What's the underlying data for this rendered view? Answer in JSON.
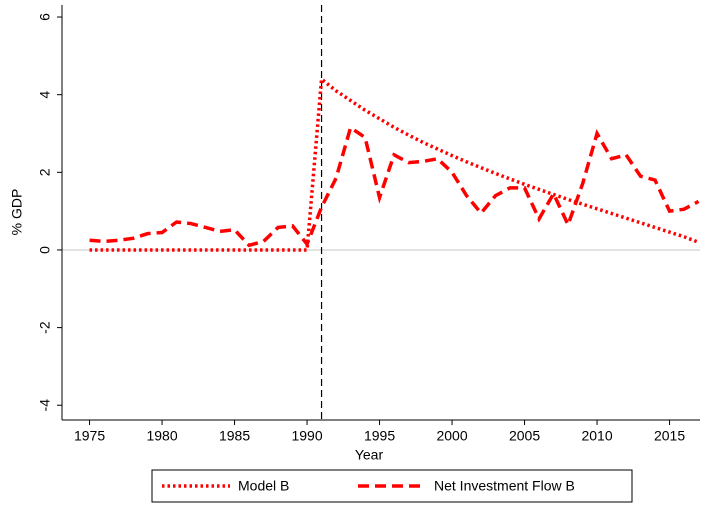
{
  "chart_data": {
    "type": "line",
    "x_label": "Year",
    "y_label": "% GDP",
    "x": [
      1975,
      1976,
      1977,
      1978,
      1979,
      1980,
      1981,
      1982,
      1983,
      1984,
      1985,
      1986,
      1987,
      1988,
      1989,
      1990,
      1991,
      1992,
      1993,
      1994,
      1995,
      1996,
      1997,
      1998,
      1999,
      2000,
      2001,
      2002,
      2003,
      2004,
      2005,
      2006,
      2007,
      2008,
      2009,
      2010,
      2011,
      2012,
      2013,
      2014,
      2015,
      2016,
      2017
    ],
    "series": [
      {
        "name": "Model B",
        "color": "#ff0000",
        "style": "dotted",
        "values": [
          0,
          0,
          0,
          0,
          0,
          0,
          0,
          0,
          0,
          0,
          0,
          0,
          0,
          0,
          0,
          0,
          4.4,
          4.1,
          3.85,
          3.6,
          3.38,
          3.16,
          2.96,
          2.77,
          2.6,
          2.43,
          2.27,
          2.12,
          1.97,
          1.83,
          1.69,
          1.56,
          1.43,
          1.3,
          1.18,
          1.06,
          0.94,
          0.82,
          0.7,
          0.58,
          0.46,
          0.34,
          0.2
        ]
      },
      {
        "name": "Net Investment Flow B",
        "color": "#ff0000",
        "style": "dashed",
        "values": [
          0.25,
          0.22,
          0.25,
          0.3,
          0.42,
          0.45,
          0.72,
          0.68,
          0.58,
          0.48,
          0.52,
          0.12,
          0.22,
          0.58,
          0.62,
          0.15,
          1.1,
          1.85,
          3.15,
          2.9,
          1.35,
          2.45,
          2.25,
          2.28,
          2.35,
          2.0,
          1.4,
          0.95,
          1.4,
          1.6,
          1.6,
          0.8,
          1.45,
          0.65,
          1.7,
          3.0,
          2.35,
          2.45,
          1.9,
          1.8,
          1.0,
          1.05,
          1.25
        ]
      }
    ],
    "xlim": [
      1973.1,
      2017.1
    ],
    "xticks": [
      1975,
      1980,
      1985,
      1990,
      1995,
      2000,
      2005,
      2010,
      2015
    ],
    "ylim": [
      -4.38,
      6.31
    ],
    "yticks": [
      -4,
      -2,
      0,
      2,
      4,
      6
    ],
    "y_reference_line": 0,
    "x_reference_line": 1991,
    "legend": "bottom"
  }
}
